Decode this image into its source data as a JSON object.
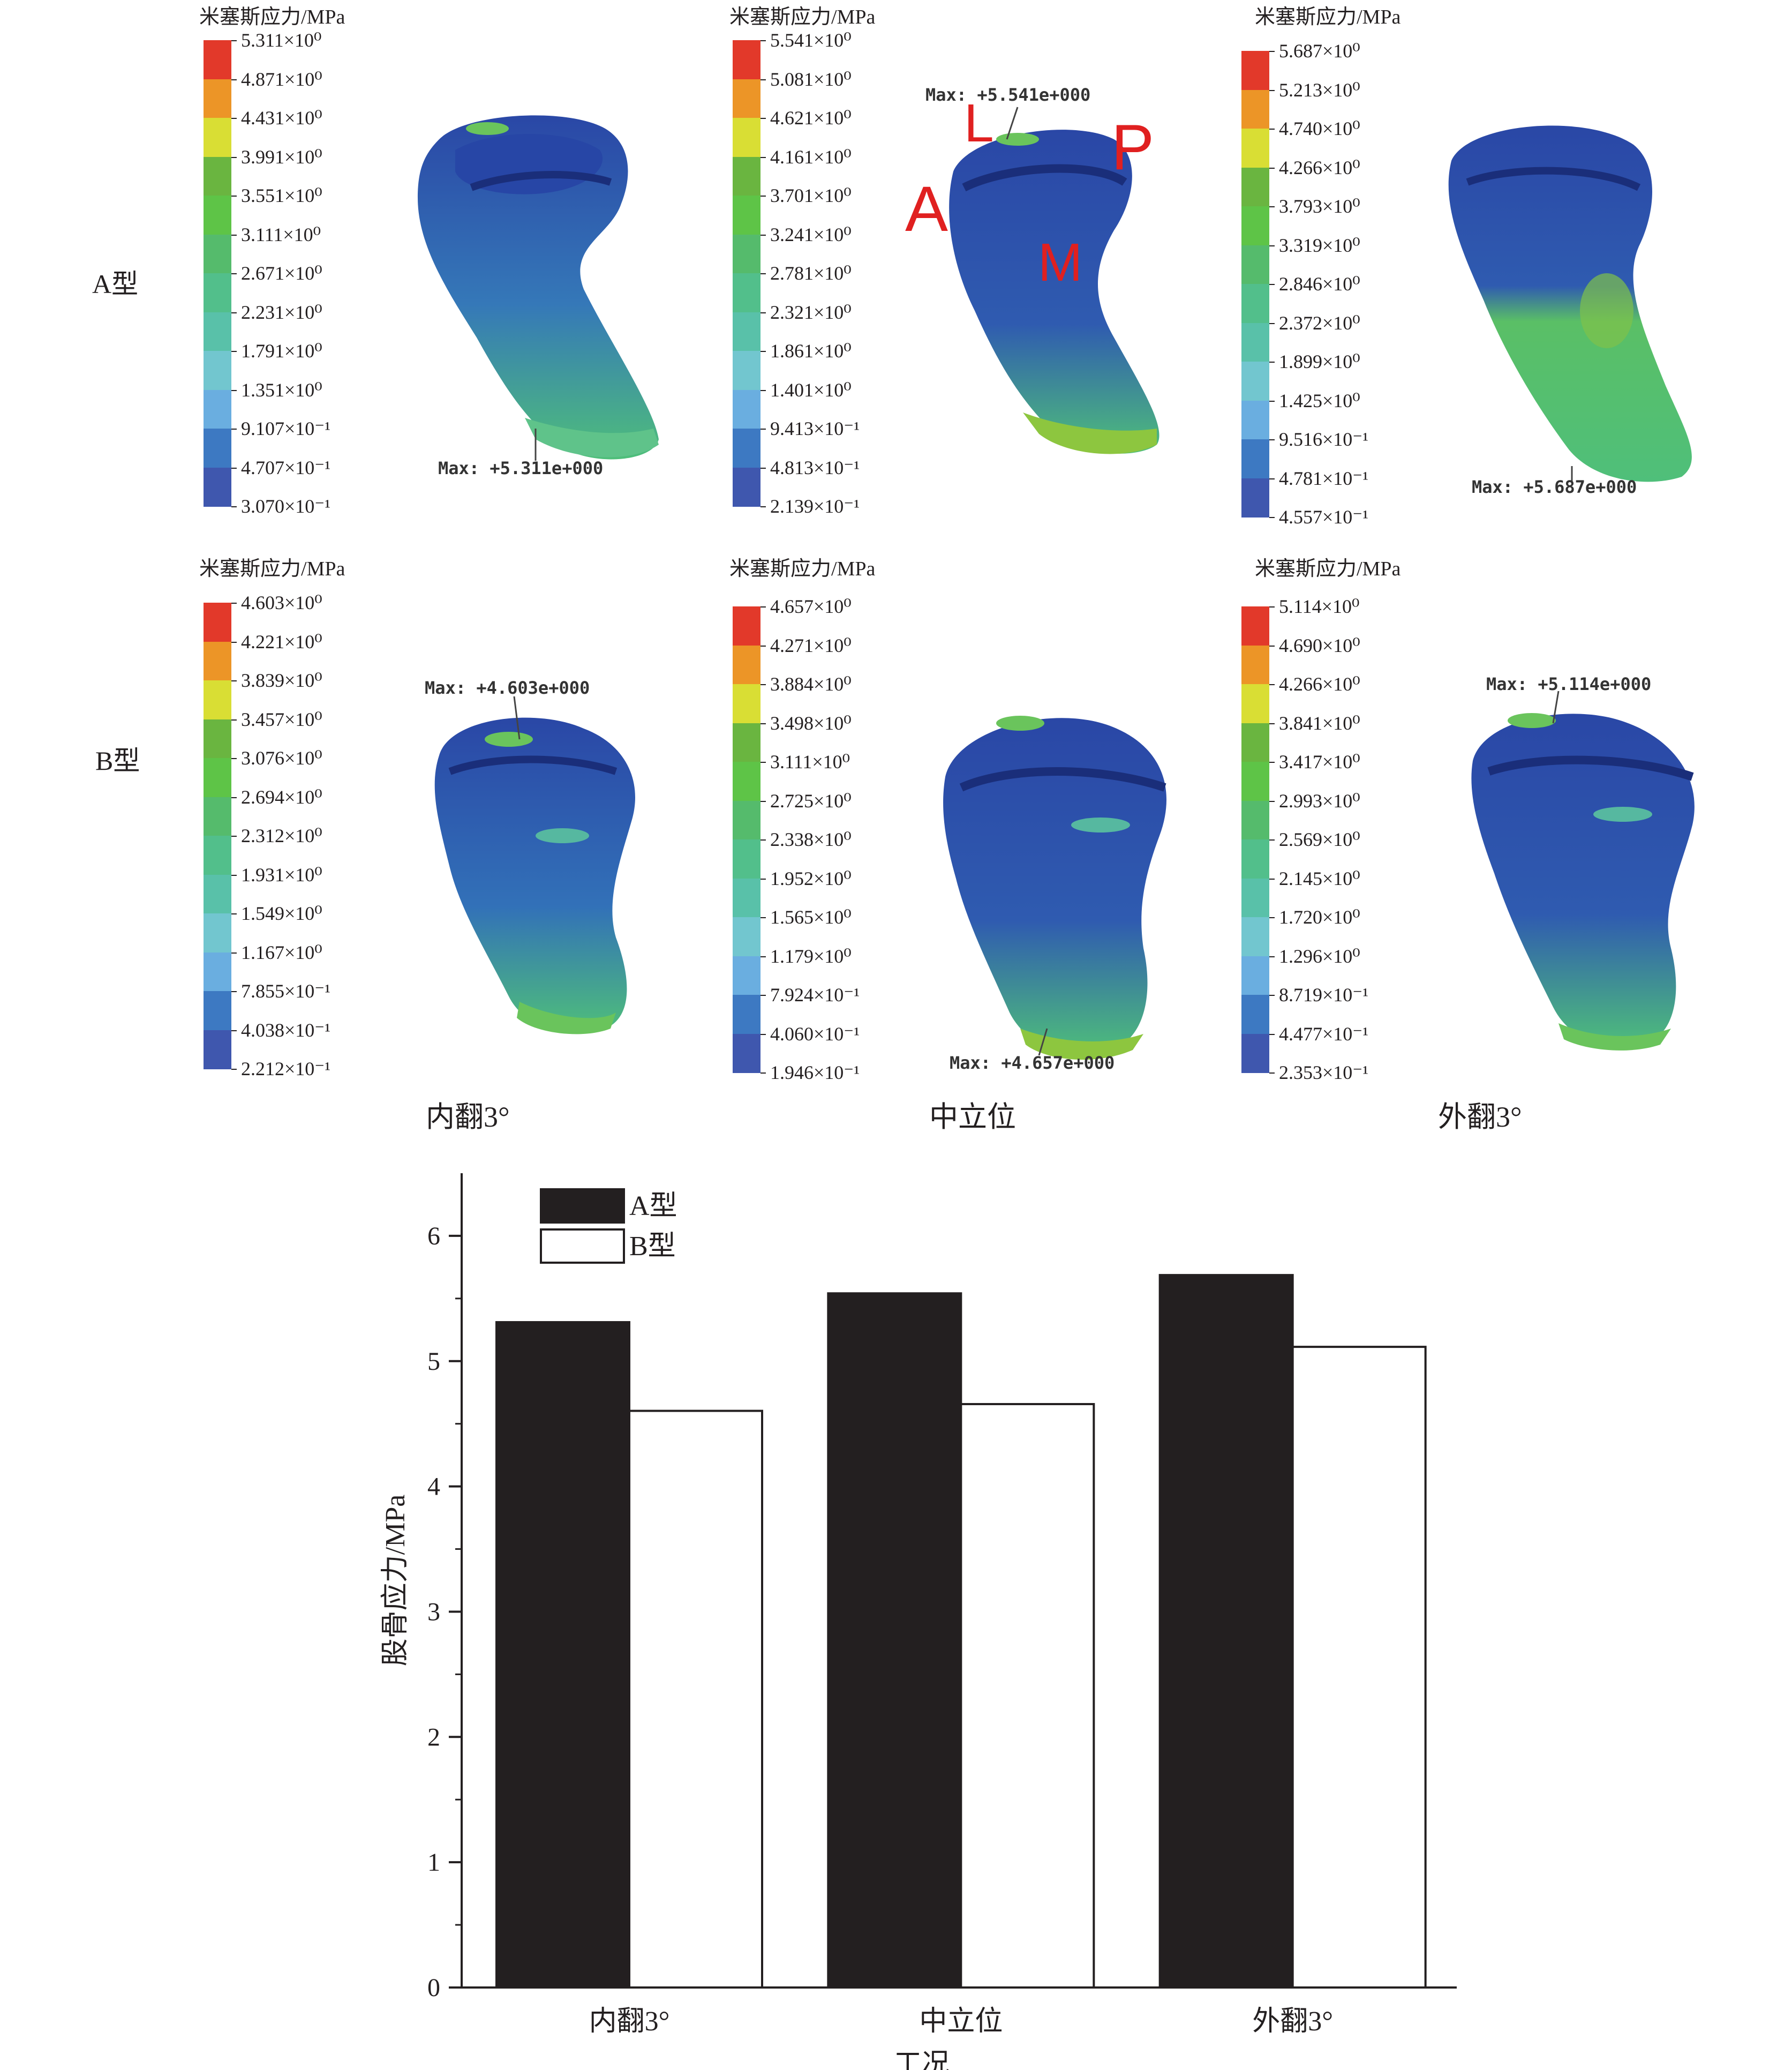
{
  "contour_panels": {
    "legend_title": "米塞斯应力/MPa",
    "row_labels": {
      "a": "A型",
      "b": "B型"
    },
    "column_labels": [
      "内翻3°",
      "中立位",
      "外翻3°"
    ],
    "orientation_labels": {
      "a": "A",
      "l": "L",
      "p": "P",
      "m": "M"
    },
    "colormap": [
      "#e2392a",
      "#ec9527",
      "#d9de34",
      "#6ab540",
      "#5ec447",
      "#55bb6c",
      "#52bf8b",
      "#59c1a9",
      "#72c6cf",
      "#6aaee0",
      "#3d79c2",
      "#3f57ae"
    ],
    "legends": {
      "a_varus": [
        "5.311×10⁰",
        "4.871×10⁰",
        "4.431×10⁰",
        "3.991×10⁰",
        "3.551×10⁰",
        "3.111×10⁰",
        "2.671×10⁰",
        "2.231×10⁰",
        "1.791×10⁰",
        "1.351×10⁰",
        "9.107×10⁻¹",
        "4.707×10⁻¹",
        "3.070×10⁻¹"
      ],
      "a_neutral": [
        "5.541×10⁰",
        "5.081×10⁰",
        "4.621×10⁰",
        "4.161×10⁰",
        "3.701×10⁰",
        "3.241×10⁰",
        "2.781×10⁰",
        "2.321×10⁰",
        "1.861×10⁰",
        "1.401×10⁰",
        "9.413×10⁻¹",
        "4.813×10⁻¹",
        "2.139×10⁻¹"
      ],
      "a_valgus": [
        "5.687×10⁰",
        "5.213×10⁰",
        "4.740×10⁰",
        "4.266×10⁰",
        "3.793×10⁰",
        "3.319×10⁰",
        "2.846×10⁰",
        "2.372×10⁰",
        "1.899×10⁰",
        "1.425×10⁰",
        "9.516×10⁻¹",
        "4.781×10⁻¹",
        "4.557×10⁻¹"
      ],
      "b_varus": [
        "4.603×10⁰",
        "4.221×10⁰",
        "3.839×10⁰",
        "3.457×10⁰",
        "3.076×10⁰",
        "2.694×10⁰",
        "2.312×10⁰",
        "1.931×10⁰",
        "1.549×10⁰",
        "1.167×10⁰",
        "7.855×10⁻¹",
        "4.038×10⁻¹",
        "2.212×10⁻¹"
      ],
      "b_neutral": [
        "4.657×10⁰",
        "4.271×10⁰",
        "3.884×10⁰",
        "3.498×10⁰",
        "3.111×10⁰",
        "2.725×10⁰",
        "2.338×10⁰",
        "1.952×10⁰",
        "1.565×10⁰",
        "1.179×10⁰",
        "7.924×10⁻¹",
        "4.060×10⁻¹",
        "1.946×10⁻¹"
      ],
      "b_valgus": [
        "5.114×10⁰",
        "4.690×10⁰",
        "4.266×10⁰",
        "3.841×10⁰",
        "3.417×10⁰",
        "2.993×10⁰",
        "2.569×10⁰",
        "2.145×10⁰",
        "1.720×10⁰",
        "1.296×10⁰",
        "8.719×10⁻¹",
        "4.477×10⁻¹",
        "2.353×10⁻¹"
      ]
    },
    "max_labels": {
      "a_varus": "Max: +5.311e+000",
      "a_neutral": "Max: +5.541e+000",
      "a_valgus": "Max: +5.687e+000",
      "b_varus": "Max: +4.603e+000",
      "b_neutral": "Max: +4.657e+000",
      "b_valgus": "Max: +5.114e+000"
    }
  },
  "chart_data": {
    "type": "bar",
    "categories": [
      "内翻3°",
      "中立位",
      "外翻3°"
    ],
    "series": [
      {
        "name": "A型",
        "values": [
          5.311,
          5.541,
          5.687
        ],
        "fill": "#231f20"
      },
      {
        "name": "B型",
        "values": [
          4.603,
          4.657,
          5.114
        ],
        "fill": "#ffffff"
      }
    ],
    "xlabel": "工况",
    "ylabel": "股骨应力/MPa",
    "ylim": [
      0,
      6.5
    ],
    "yticks": [
      0,
      1,
      2,
      3,
      4,
      5,
      6
    ],
    "legend_position": "top-left",
    "grid": false
  }
}
